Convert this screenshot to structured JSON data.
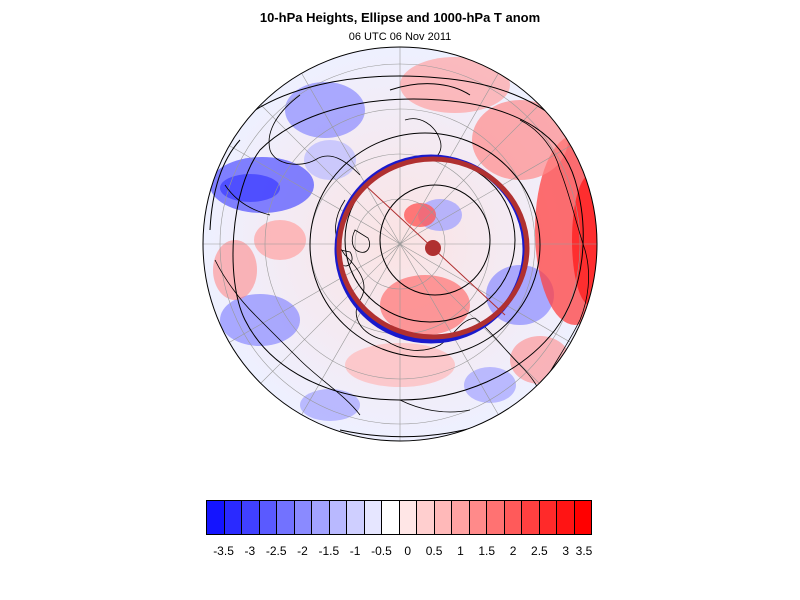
{
  "title": "10-hPa Heights, Ellipse and 1000-hPa T anom",
  "subtitle": "06 UTC 06 Nov 2011",
  "projection": "north-polar-stereographic",
  "colorbar": {
    "colors": [
      "#1414ff",
      "#2a2aff",
      "#4040ff",
      "#5a5aff",
      "#7272ff",
      "#8a8aff",
      "#a2a2ff",
      "#b9b9ff",
      "#cfcfff",
      "#e6e6ff",
      "#ffffff",
      "#ffe6e6",
      "#ffcfcf",
      "#ffb9b9",
      "#ffa2a2",
      "#ff8a8a",
      "#ff7272",
      "#ff5a5a",
      "#ff4040",
      "#ff2a2a",
      "#ff1414",
      "#ff0000"
    ],
    "labels": [
      "-3.5",
      "-3",
      "-2.5",
      "-2",
      "-1.5",
      "-1",
      "-0.5",
      "0",
      "0.5",
      "1",
      "1.5",
      "2",
      "2.5",
      "3",
      "3.5"
    ]
  },
  "overlay": {
    "ellipse_outer_color": "#1a1acc",
    "ellipse_inner_color": "#b03030",
    "contour_color": "#000000",
    "coastline_color": "#000000",
    "grid_color": "#999999"
  }
}
